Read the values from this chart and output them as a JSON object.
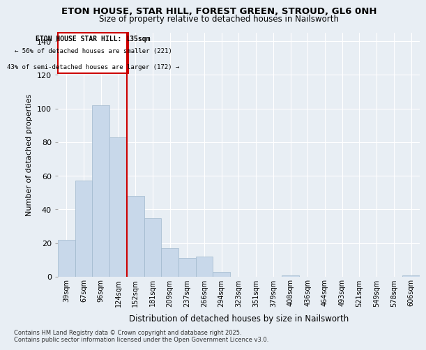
{
  "title1": "ETON HOUSE, STAR HILL, FOREST GREEN, STROUD, GL6 0NH",
  "title2": "Size of property relative to detached houses in Nailsworth",
  "xlabel": "Distribution of detached houses by size in Nailsworth",
  "ylabel": "Number of detached properties",
  "categories": [
    "39sqm",
    "67sqm",
    "96sqm",
    "124sqm",
    "152sqm",
    "181sqm",
    "209sqm",
    "237sqm",
    "266sqm",
    "294sqm",
    "323sqm",
    "351sqm",
    "379sqm",
    "408sqm",
    "436sqm",
    "464sqm",
    "493sqm",
    "521sqm",
    "549sqm",
    "578sqm",
    "606sqm"
  ],
  "values": [
    22,
    57,
    102,
    83,
    48,
    35,
    17,
    11,
    12,
    3,
    0,
    0,
    0,
    1,
    0,
    0,
    0,
    0,
    0,
    0,
    1
  ],
  "bar_color": "#c8d8ea",
  "bar_edge_color": "#a0b8cc",
  "annotation_title": "ETON HOUSE STAR HILL: 135sqm",
  "annotation_line1": "← 56% of detached houses are smaller (221)",
  "annotation_line2": "43% of semi-detached houses are larger (172) →",
  "vline_color": "#cc0000",
  "vline_x": 3.5,
  "footnote1": "Contains HM Land Registry data © Crown copyright and database right 2025.",
  "footnote2": "Contains public sector information licensed under the Open Government Licence v3.0.",
  "ylim": [
    0,
    145
  ],
  "background_color": "#e8eef4"
}
